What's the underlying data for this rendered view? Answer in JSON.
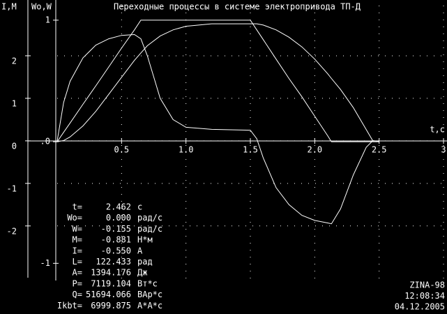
{
  "chart_data": {
    "type": "line",
    "title": "Переходные процессы в системе электропривода ТП-Д",
    "ylabel": "I,M",
    "y2label": "Wo,W",
    "xlabel": "t,c",
    "x": [
      0,
      0.05,
      0.1,
      0.2,
      0.3,
      0.4,
      0.5,
      0.6,
      0.65,
      0.7,
      0.8,
      0.9,
      1.0,
      1.2,
      1.5,
      1.55,
      1.6,
      1.7,
      1.8,
      1.9,
      2.0,
      2.1,
      2.13,
      2.2,
      2.3,
      2.4,
      2.45,
      2.5
    ],
    "series": [
      {
        "color": "#ffffff",
        "axis": "y2",
        "values": [
          0,
          0.077,
          0.154,
          0.308,
          0.46,
          0.615,
          0.77,
          0.92,
          1,
          1,
          1,
          1,
          1,
          1,
          1,
          0.92,
          0.84,
          0.68,
          0.52,
          0.37,
          0.21,
          0.05,
          0,
          0,
          0,
          0,
          0,
          0
        ]
      },
      {
        "color": "#ffffff",
        "axis": "y2",
        "values": [
          0,
          0.01,
          0.04,
          0.13,
          0.25,
          0.39,
          0.53,
          0.67,
          0.73,
          0.79,
          0.87,
          0.92,
          0.95,
          0.97,
          0.97,
          0.97,
          0.96,
          0.92,
          0.86,
          0.78,
          0.68,
          0.56,
          0.52,
          0.43,
          0.28,
          0.1,
          0.01,
          0
        ]
      },
      {
        "color": "#ffffff",
        "values": [
          0,
          0.9,
          1.4,
          1.95,
          2.25,
          2.4,
          2.48,
          2.5,
          2.4,
          2.0,
          1.0,
          0.5,
          0.32,
          0.27,
          0.25,
          0.05,
          -0.4,
          -1.1,
          -1.5,
          -1.75,
          -1.87,
          -1.93,
          -1.95,
          -1.6,
          -0.8,
          -0.15,
          0,
          0
        ]
      }
    ],
    "xlim": [
      0,
      3
    ],
    "xticks": [
      0.5,
      {
        "value": 1,
        "label": "1.0"
      },
      1.5,
      {
        "value": 2,
        "label": "2.0"
      },
      2.5,
      3
    ],
    "ylim": [
      -3.25,
      3.18
    ],
    "yticks": [
      2,
      1,
      0,
      -1,
      -2
    ],
    "y2lim": [
      -1.13,
      1.12
    ],
    "y2ticks": [
      1,
      {
        "value": 0,
        "label": ".0"
      },
      -1
    ],
    "grid": true,
    "readout": [
      {
        "label": "t=",
        "value": "2.462",
        "unit": "c"
      },
      {
        "label": "Wo=",
        "value": "0.000",
        "unit": "рад/с"
      },
      {
        "label": "W=",
        "value": "-0.155",
        "unit": "рад/с"
      },
      {
        "label": "M=",
        "value": "-0.881",
        "unit": "Н*м"
      },
      {
        "label": "I=",
        "value": "-0.550",
        "unit": "A"
      },
      {
        "label": "L=",
        "value": "122.433",
        "unit": "рад"
      },
      {
        "label": "A=",
        "value": "1394.176",
        "unit": "Дж"
      },
      {
        "label": "P=",
        "value": "7119.104",
        "unit": "Вт*с"
      },
      {
        "label": "Q=",
        "value": "51694.066",
        "unit": "ВАр*с"
      },
      {
        "label": "Ikbt=",
        "value": "6999.875",
        "unit": "A*A*c"
      }
    ],
    "footer": [
      "ZINA-98",
      "12:08:34",
      "04.12.2005"
    ]
  }
}
